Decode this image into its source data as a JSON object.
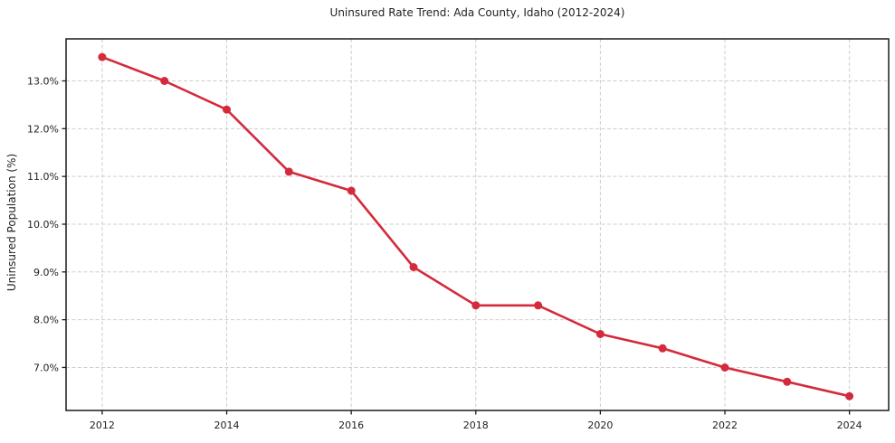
{
  "chart_data": {
    "type": "line",
    "title": "Uninsured Rate Trend: Ada County, Idaho (2012-2024)",
    "ylabel": "Uninsured Population (%)",
    "xlabel": "",
    "x": [
      2012,
      2013,
      2014,
      2015,
      2016,
      2017,
      2018,
      2019,
      2020,
      2021,
      2022,
      2023,
      2024
    ],
    "series": [
      {
        "values": [
          13.5,
          13.0,
          12.4,
          11.1,
          10.7,
          9.1,
          8.3,
          8.3,
          7.7,
          7.4,
          7.0,
          6.7,
          6.4
        ],
        "color": "#d42a3c",
        "marker": "circle",
        "line_width": 2.6,
        "marker_radius": 4.5
      }
    ],
    "x_ticks": [
      2012,
      2014,
      2016,
      2018,
      2020,
      2022,
      2024
    ],
    "x_tick_labels": [
      "2012",
      "2014",
      "2016",
      "2018",
      "2020",
      "2022",
      "2024"
    ],
    "y_ticks": [
      7,
      8,
      9,
      10,
      11,
      12,
      13
    ],
    "y_tick_labels": [
      "7.0%",
      "8.0%",
      "9.0%",
      "10.0%",
      "11.0%",
      "12.0%",
      "13.0%"
    ],
    "xlim": [
      2011.42,
      2024.63
    ],
    "ylim": [
      6.1,
      13.88
    ],
    "grid": {
      "show": true,
      "style": "dashed",
      "color": "#cdcdcd"
    },
    "frame_color": "#1a1a1a",
    "text_color": "#1f1f1f",
    "legend": "none",
    "background": "#ffffff"
  }
}
